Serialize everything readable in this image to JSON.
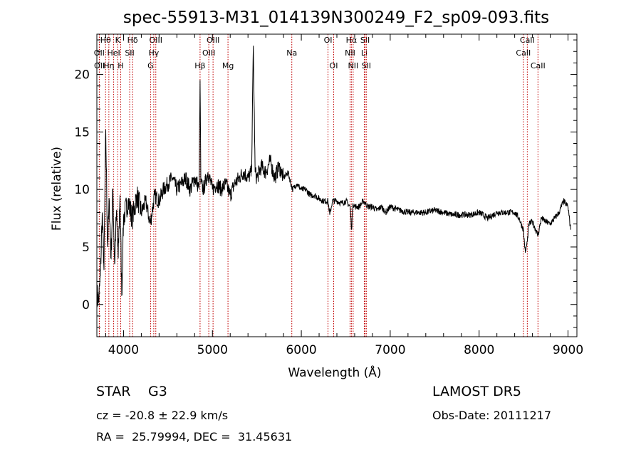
{
  "chart_data": {
    "type": "line",
    "title": "spec-55913-M31_014139N300249_F2_sp09-093.fits",
    "xlabel": "Wavelength (Å)",
    "ylabel": "Flux (relative)",
    "xlim": [
      3700,
      9100
    ],
    "ylim": [
      -2.8,
      23.5
    ],
    "xticks": [
      "4000",
      "5000",
      "6000",
      "7000",
      "8000",
      "9000"
    ],
    "yticks": [
      "0",
      "5",
      "10",
      "15",
      "20"
    ],
    "grid": false,
    "series": [
      {
        "values_note": "",
        "x": [
          3700,
          3720,
          3740,
          3760,
          3780,
          3800,
          3820,
          3840,
          3860,
          3880,
          3900,
          3920,
          3940,
          3960,
          3980,
          4000,
          4050,
          4100,
          4150,
          4200,
          4250,
          4300,
          4350,
          4400,
          4450,
          4500,
          4550,
          4600,
          4650,
          4700,
          4750,
          4800,
          4830,
          4850,
          4861,
          4870,
          4900,
          4950,
          5000,
          5050,
          5100,
          5150,
          5200,
          5250,
          5300,
          5350,
          5400,
          5440,
          5460,
          5480,
          5500,
          5550,
          5600,
          5650,
          5700,
          5750,
          5800,
          5850,
          5900,
          5950,
          6000,
          6050,
          6100,
          6150,
          6200,
          6250,
          6300,
          6320,
          6350,
          6400,
          6450,
          6500,
          6550,
          6565,
          6580,
          6600,
          6650,
          6700,
          6750,
          6800,
          6850,
          6900,
          6950,
          7000,
          7100,
          7200,
          7300,
          7400,
          7500,
          7600,
          7700,
          7800,
          7900,
          8000,
          8100,
          8200,
          8300,
          8400,
          8450,
          8498,
          8520,
          8542,
          8560,
          8600,
          8662,
          8700,
          8750,
          8800,
          8850,
          8900,
          8950,
          9000,
          9030
        ],
        "y": [
          1.0,
          0.2,
          2.5,
          8.0,
          3.0,
          15.2,
          5.0,
          9.0,
          4.0,
          10.0,
          3.5,
          8.0,
          4.0,
          9.5,
          0.8,
          7.5,
          9.0,
          7.5,
          9.5,
          8.0,
          9.0,
          7.0,
          9.5,
          9.0,
          10.0,
          10.5,
          11.0,
          10.0,
          10.5,
          11.0,
          10.0,
          11.0,
          10.5,
          10.0,
          19.5,
          10.5,
          10.0,
          11.5,
          10.0,
          10.5,
          10.0,
          10.5,
          9.5,
          10.5,
          11.0,
          11.5,
          11.0,
          11.5,
          22.5,
          11.5,
          11.0,
          12.0,
          11.5,
          12.5,
          11.0,
          12.0,
          11.0,
          11.5,
          10.0,
          10.5,
          10.0,
          10.0,
          9.5,
          9.5,
          9.2,
          9.0,
          9.0,
          7.8,
          9.0,
          9.0,
          8.8,
          9.0,
          8.5,
          6.5,
          8.8,
          8.5,
          8.5,
          9.0,
          8.5,
          8.5,
          8.2,
          8.5,
          8.0,
          8.5,
          8.2,
          8.0,
          8.0,
          8.0,
          8.2,
          8.0,
          7.8,
          7.8,
          7.8,
          8.0,
          7.5,
          8.0,
          8.0,
          8.0,
          7.5,
          6.5,
          4.5,
          5.5,
          7.0,
          7.2,
          6.0,
          7.5,
          7.2,
          7.0,
          7.5,
          8.0,
          9.0,
          8.5,
          6.5
        ]
      }
    ],
    "lines": [
      {
        "name": "Hθ",
        "x": 3798,
        "row": 0
      },
      {
        "name": "OII",
        "x": 3727,
        "row": 1
      },
      {
        "name": "OII",
        "x": 3729,
        "row": 2
      },
      {
        "name": "K",
        "x": 3934,
        "row": 0
      },
      {
        "name": "HeI",
        "x": 3889,
        "row": 1
      },
      {
        "name": "Hη",
        "x": 3835,
        "row": 2
      },
      {
        "name": "H",
        "x": 3968,
        "row": 2
      },
      {
        "name": "Hδ",
        "x": 4102,
        "row": 0
      },
      {
        "name": "SII",
        "x": 4069,
        "row": 1
      },
      {
        "name": "OIII",
        "x": 4363,
        "row": 0
      },
      {
        "name": "Hγ",
        "x": 4340,
        "row": 1
      },
      {
        "name": "G",
        "x": 4304,
        "row": 2
      },
      {
        "name": "Hβ",
        "x": 4861,
        "row": 2
      },
      {
        "name": "OIII",
        "x": 5007,
        "row": 0
      },
      {
        "name": "OIII",
        "x": 4959,
        "row": 1
      },
      {
        "name": "Mg",
        "x": 5175,
        "row": 2
      },
      {
        "name": "Na",
        "x": 5893,
        "row": 1
      },
      {
        "name": "OI",
        "x": 6300,
        "row": 0
      },
      {
        "name": "OI",
        "x": 6364,
        "row": 2
      },
      {
        "name": "Hα",
        "x": 6563,
        "row": 0
      },
      {
        "name": "NII",
        "x": 6548,
        "row": 1
      },
      {
        "name": "NII",
        "x": 6583,
        "row": 2
      },
      {
        "name": "SII",
        "x": 6717,
        "row": 0
      },
      {
        "name": "Li",
        "x": 6708,
        "row": 1
      },
      {
        "name": "SII",
        "x": 6731,
        "row": 2
      },
      {
        "name": "CaII",
        "x": 8542,
        "row": 0
      },
      {
        "name": "CaII",
        "x": 8498,
        "row": 1
      },
      {
        "name": "CaII",
        "x": 8662,
        "row": 2
      }
    ],
    "line_color": "#c00000"
  },
  "info": {
    "class": "STAR",
    "subclass": "G3",
    "survey": "LAMOST DR5",
    "cz": "cz = -20.8 ± 22.9 km/s",
    "obsdate": "Obs-Date: 20111217",
    "radec": "RA =  25.79994, DEC =  31.45631"
  }
}
